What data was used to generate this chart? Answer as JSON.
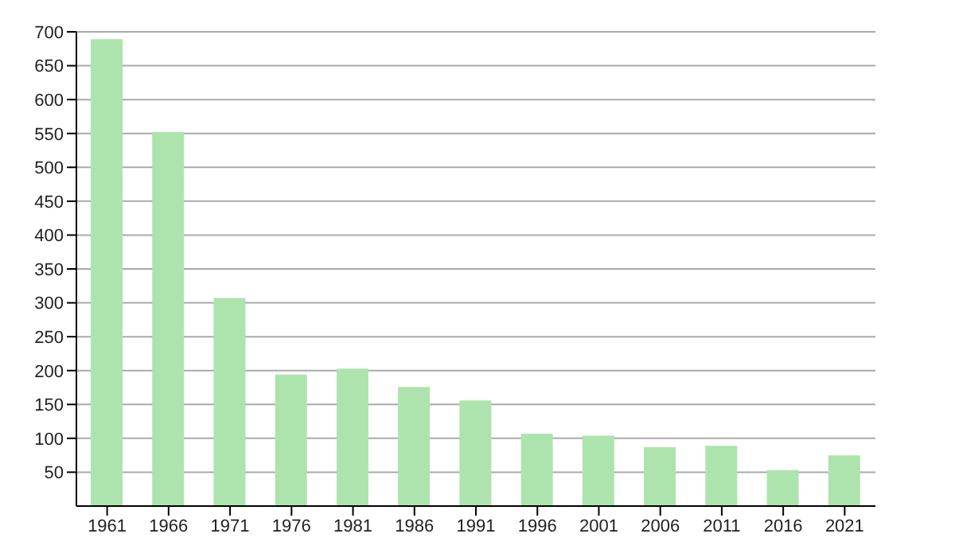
{
  "chart_data": {
    "type": "bar",
    "categories": [
      "1961",
      "1966",
      "1971",
      "1976",
      "1981",
      "1986",
      "1991",
      "1996",
      "2001",
      "2006",
      "2011",
      "2016",
      "2021"
    ],
    "values": [
      689,
      552,
      307,
      194,
      203,
      176,
      156,
      107,
      104,
      87,
      89,
      53,
      75
    ],
    "color": "#ade4ad",
    "ylim": [
      0,
      700
    ],
    "yticks": [
      50,
      100,
      150,
      200,
      250,
      300,
      350,
      400,
      450,
      500,
      550,
      600,
      650,
      700
    ],
    "grid": "y"
  }
}
